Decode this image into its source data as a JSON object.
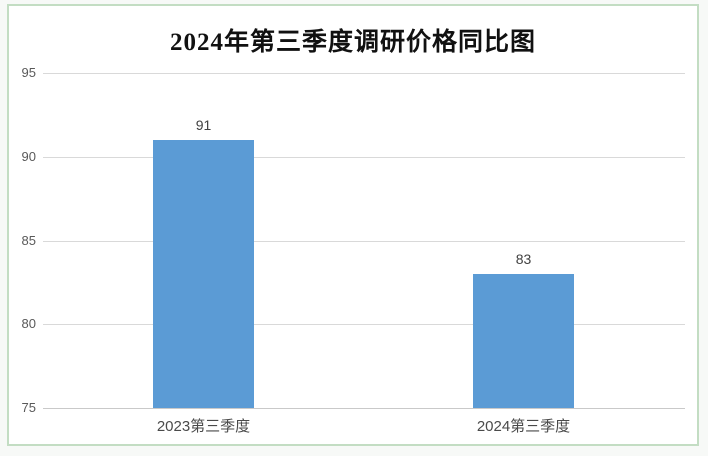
{
  "chart_data": {
    "type": "bar",
    "title": "2024年第三季度调研价格同比图",
    "categories": [
      "2023第三季度",
      "2024第三季度"
    ],
    "values": [
      91,
      83
    ],
    "data_labels": [
      "91",
      "83"
    ],
    "xlabel": "",
    "ylabel": "",
    "ylim": [
      75,
      95
    ],
    "yticks": [
      75,
      80,
      85,
      90,
      95
    ],
    "grid": "horizontal",
    "legend": "none",
    "colors": {
      "bar_fill": "#5b9bd5",
      "gridline": "#d9d9d9",
      "axis_line": "#c9c9c9",
      "title_text": "#111111",
      "tick_text": "#595959",
      "data_label_text": "#404040",
      "category_text": "#4a4a4a",
      "frame_border": "#c3ddc3",
      "frame_background": "#ffffff",
      "page_background": "#f7f9f7"
    }
  }
}
